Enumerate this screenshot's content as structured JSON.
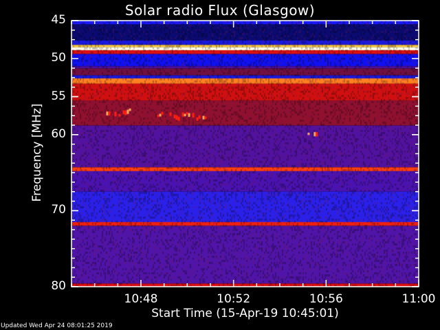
{
  "chart_data": {
    "type": "heatmap",
    "title": "Solar radio Flux (Glasgow)",
    "xlabel": "Start Time (15-Apr-19 10:45:01)",
    "ylabel": "Frequency [MHz]",
    "x_tick_labels": [
      "10:48",
      "10:52",
      "10:56",
      "11:00"
    ],
    "x_ticks_minutes": [
      3,
      7,
      11,
      15
    ],
    "xlim_minutes": [
      0,
      15
    ],
    "y_tick_labels": [
      "45",
      "50",
      "55",
      "60",
      "70",
      "80"
    ],
    "y_ticks": [
      45,
      50,
      55,
      60,
      70,
      80
    ],
    "ylim": [
      45,
      80
    ],
    "y_inverted": true,
    "colormap": "blue-red-yellow-white",
    "bands": [
      {
        "from": 45.0,
        "to": 45.5,
        "color": "#1a1aff"
      },
      {
        "from": 45.5,
        "to": 47.6,
        "color": "#0a0a70"
      },
      {
        "from": 47.6,
        "to": 48.2,
        "color": "#1818e0"
      },
      {
        "from": 48.2,
        "to": 48.5,
        "color": "#ffd040"
      },
      {
        "from": 48.5,
        "to": 48.9,
        "color": "#ffffe8"
      },
      {
        "from": 48.9,
        "to": 49.4,
        "color": "#e01010"
      },
      {
        "from": 49.4,
        "to": 51.0,
        "color": "#1010f0"
      },
      {
        "from": 51.0,
        "to": 51.3,
        "color": "#5010a0"
      },
      {
        "from": 51.3,
        "to": 52.2,
        "color": "#701040"
      },
      {
        "from": 52.2,
        "to": 52.6,
        "color": "#1818e0"
      },
      {
        "from": 52.6,
        "to": 53.3,
        "color": "#ff8020"
      },
      {
        "from": 53.3,
        "to": 55.5,
        "color": "#d01010"
      },
      {
        "from": 55.5,
        "to": 58.8,
        "color": "#901030"
      },
      {
        "from": 58.8,
        "to": 64.3,
        "color": "#5212a0"
      },
      {
        "from": 64.3,
        "to": 64.8,
        "color": "#ff4010"
      },
      {
        "from": 64.8,
        "to": 67.5,
        "color": "#4a12b0"
      },
      {
        "from": 67.5,
        "to": 71.5,
        "color": "#2a20e8"
      },
      {
        "from": 71.5,
        "to": 72.0,
        "color": "#f02010"
      },
      {
        "from": 72.0,
        "to": 79.6,
        "color": "#5014a8"
      },
      {
        "from": 79.6,
        "to": 80.0,
        "color": "#e01010"
      }
    ],
    "bursts": [
      {
        "t_minutes": [
          1.5,
          2.5
        ],
        "freq": [
          56.5,
          57.8
        ]
      },
      {
        "t_minutes": [
          3.7,
          5.8
        ],
        "freq": [
          57.0,
          58.0
        ]
      },
      {
        "t_minutes": [
          10.2,
          10.8
        ],
        "freq": [
          59.6,
          60.1
        ]
      }
    ]
  },
  "footer": {
    "updated": "Updated Wed Apr 24 08:01:25 2019"
  }
}
